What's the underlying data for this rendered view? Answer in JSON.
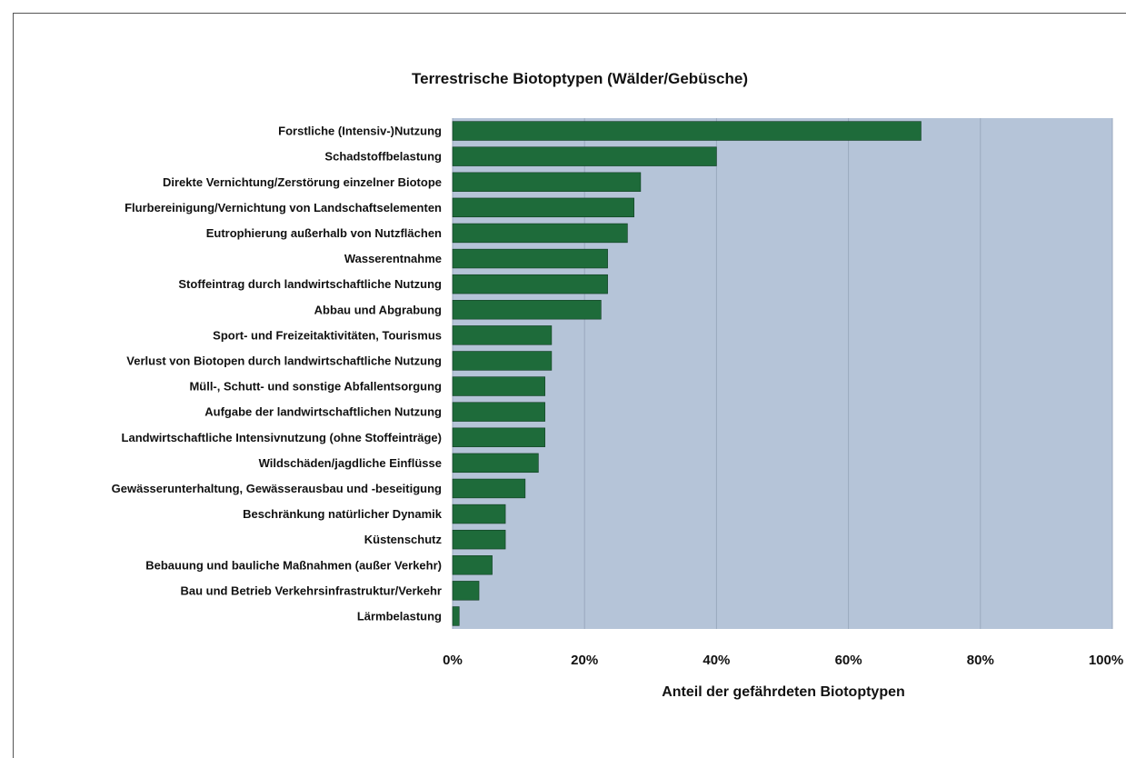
{
  "chart_data": {
    "type": "bar",
    "orientation": "horizontal",
    "title": "Terrestrische Biotoptypen (Wälder/Gebüsche)",
    "xlabel": "Anteil der gefährdeten Biotoptypen",
    "ylabel": "",
    "xlim": [
      0,
      1
    ],
    "x_ticks": [
      "0%",
      "20%",
      "40%",
      "60%",
      "80%",
      "100%"
    ],
    "grid": true,
    "categories": [
      "Forstliche (Intensiv-)Nutzung",
      "Schadstoffbelastung",
      "Direkte Vernichtung/Zerstörung einzelner Biotope",
      "Flurbereinigung/Vernichtung von Landschaftselementen",
      "Eutrophierung außerhalb von Nutzflächen",
      "Wasserentnahme",
      "Stoffeintrag durch landwirtschaftliche Nutzung",
      "Abbau und Abgrabung",
      "Sport- und Freizeitaktivitäten, Tourismus",
      "Verlust von Biotopen durch landwirtschaftliche Nutzung",
      "Müll-, Schutt- und sonstige Abfallentsorgung",
      "Aufgabe der landwirtschaftlichen Nutzung",
      "Landwirtschaftliche Intensivnutzung (ohne Stoffeinträge)",
      "Wildschäden/jagdliche Einflüsse",
      "Gewässerunterhaltung, Gewässerausbau und -beseitigung",
      "Beschränkung natürlicher Dynamik",
      "Küstenschutz",
      "Bebauung und bauliche Maßnahmen (außer Verkehr)",
      "Bau und Betrieb Verkehrsinfrastruktur/Verkehr",
      "Lärmbelastung"
    ],
    "values": [
      0.71,
      0.4,
      0.285,
      0.275,
      0.265,
      0.235,
      0.235,
      0.225,
      0.15,
      0.15,
      0.14,
      0.14,
      0.14,
      0.13,
      0.11,
      0.08,
      0.08,
      0.06,
      0.04,
      0.01
    ],
    "colors": {
      "bar": "#1e6b3a",
      "plot_background": "#b5c4d8",
      "gridline": "#9aa9be"
    }
  }
}
